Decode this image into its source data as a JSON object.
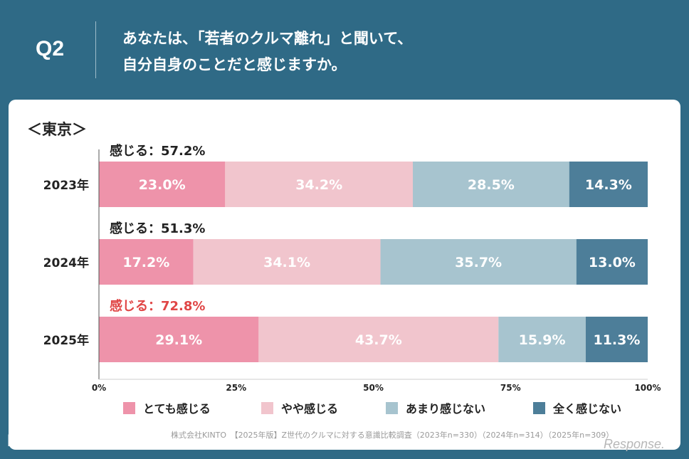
{
  "header": {
    "badge": "Q2",
    "question_line1": "あなたは、「若者のクルマ離れ」と聞いて、",
    "question_line2": "自分自身のことだと感じますか。"
  },
  "region_label": "＜東京＞",
  "chart_data": {
    "type": "bar",
    "orientation": "horizontal",
    "stacked": true,
    "categories": [
      "2023年",
      "2024年",
      "2025年"
    ],
    "series": [
      {
        "name": "とても感じる",
        "color": "#ee93aa",
        "values": [
          23.0,
          17.2,
          29.1
        ],
        "labels": [
          "23.0%",
          "17.2%",
          "29.1%"
        ]
      },
      {
        "name": "やや感じる",
        "color": "#f1c5cd",
        "values": [
          34.2,
          34.1,
          43.7
        ],
        "labels": [
          "34.2%",
          "34.1%",
          "43.7%"
        ]
      },
      {
        "name": "あまり感じない",
        "color": "#a7c4cf",
        "values": [
          28.5,
          35.7,
          15.9
        ],
        "labels": [
          "28.5%",
          "35.7%",
          "15.9%"
        ]
      },
      {
        "name": "全く感じない",
        "color": "#4d7e99",
        "values": [
          14.3,
          13.0,
          11.3
        ],
        "labels": [
          "14.3%",
          "13.0%",
          "11.3%"
        ]
      }
    ],
    "totals": [
      "感じる：57.2%",
      "感じる：51.3%",
      "感じる：72.8%"
    ],
    "totals_highlight": [
      false,
      false,
      true
    ],
    "highlight_color": "#e04646",
    "xlim": [
      0,
      100
    ],
    "xticks": [
      "0%",
      "25%",
      "50%",
      "75%",
      "100%"
    ],
    "legend_position": "bottom"
  },
  "footer": {
    "logo": "KINTO",
    "source": "株式会社KINTO　【2025年版】Z世代のクルマに対する意識比較調査（2023年n=330）（2024年n=314）（2025年n=309）",
    "watermark": "Response."
  }
}
